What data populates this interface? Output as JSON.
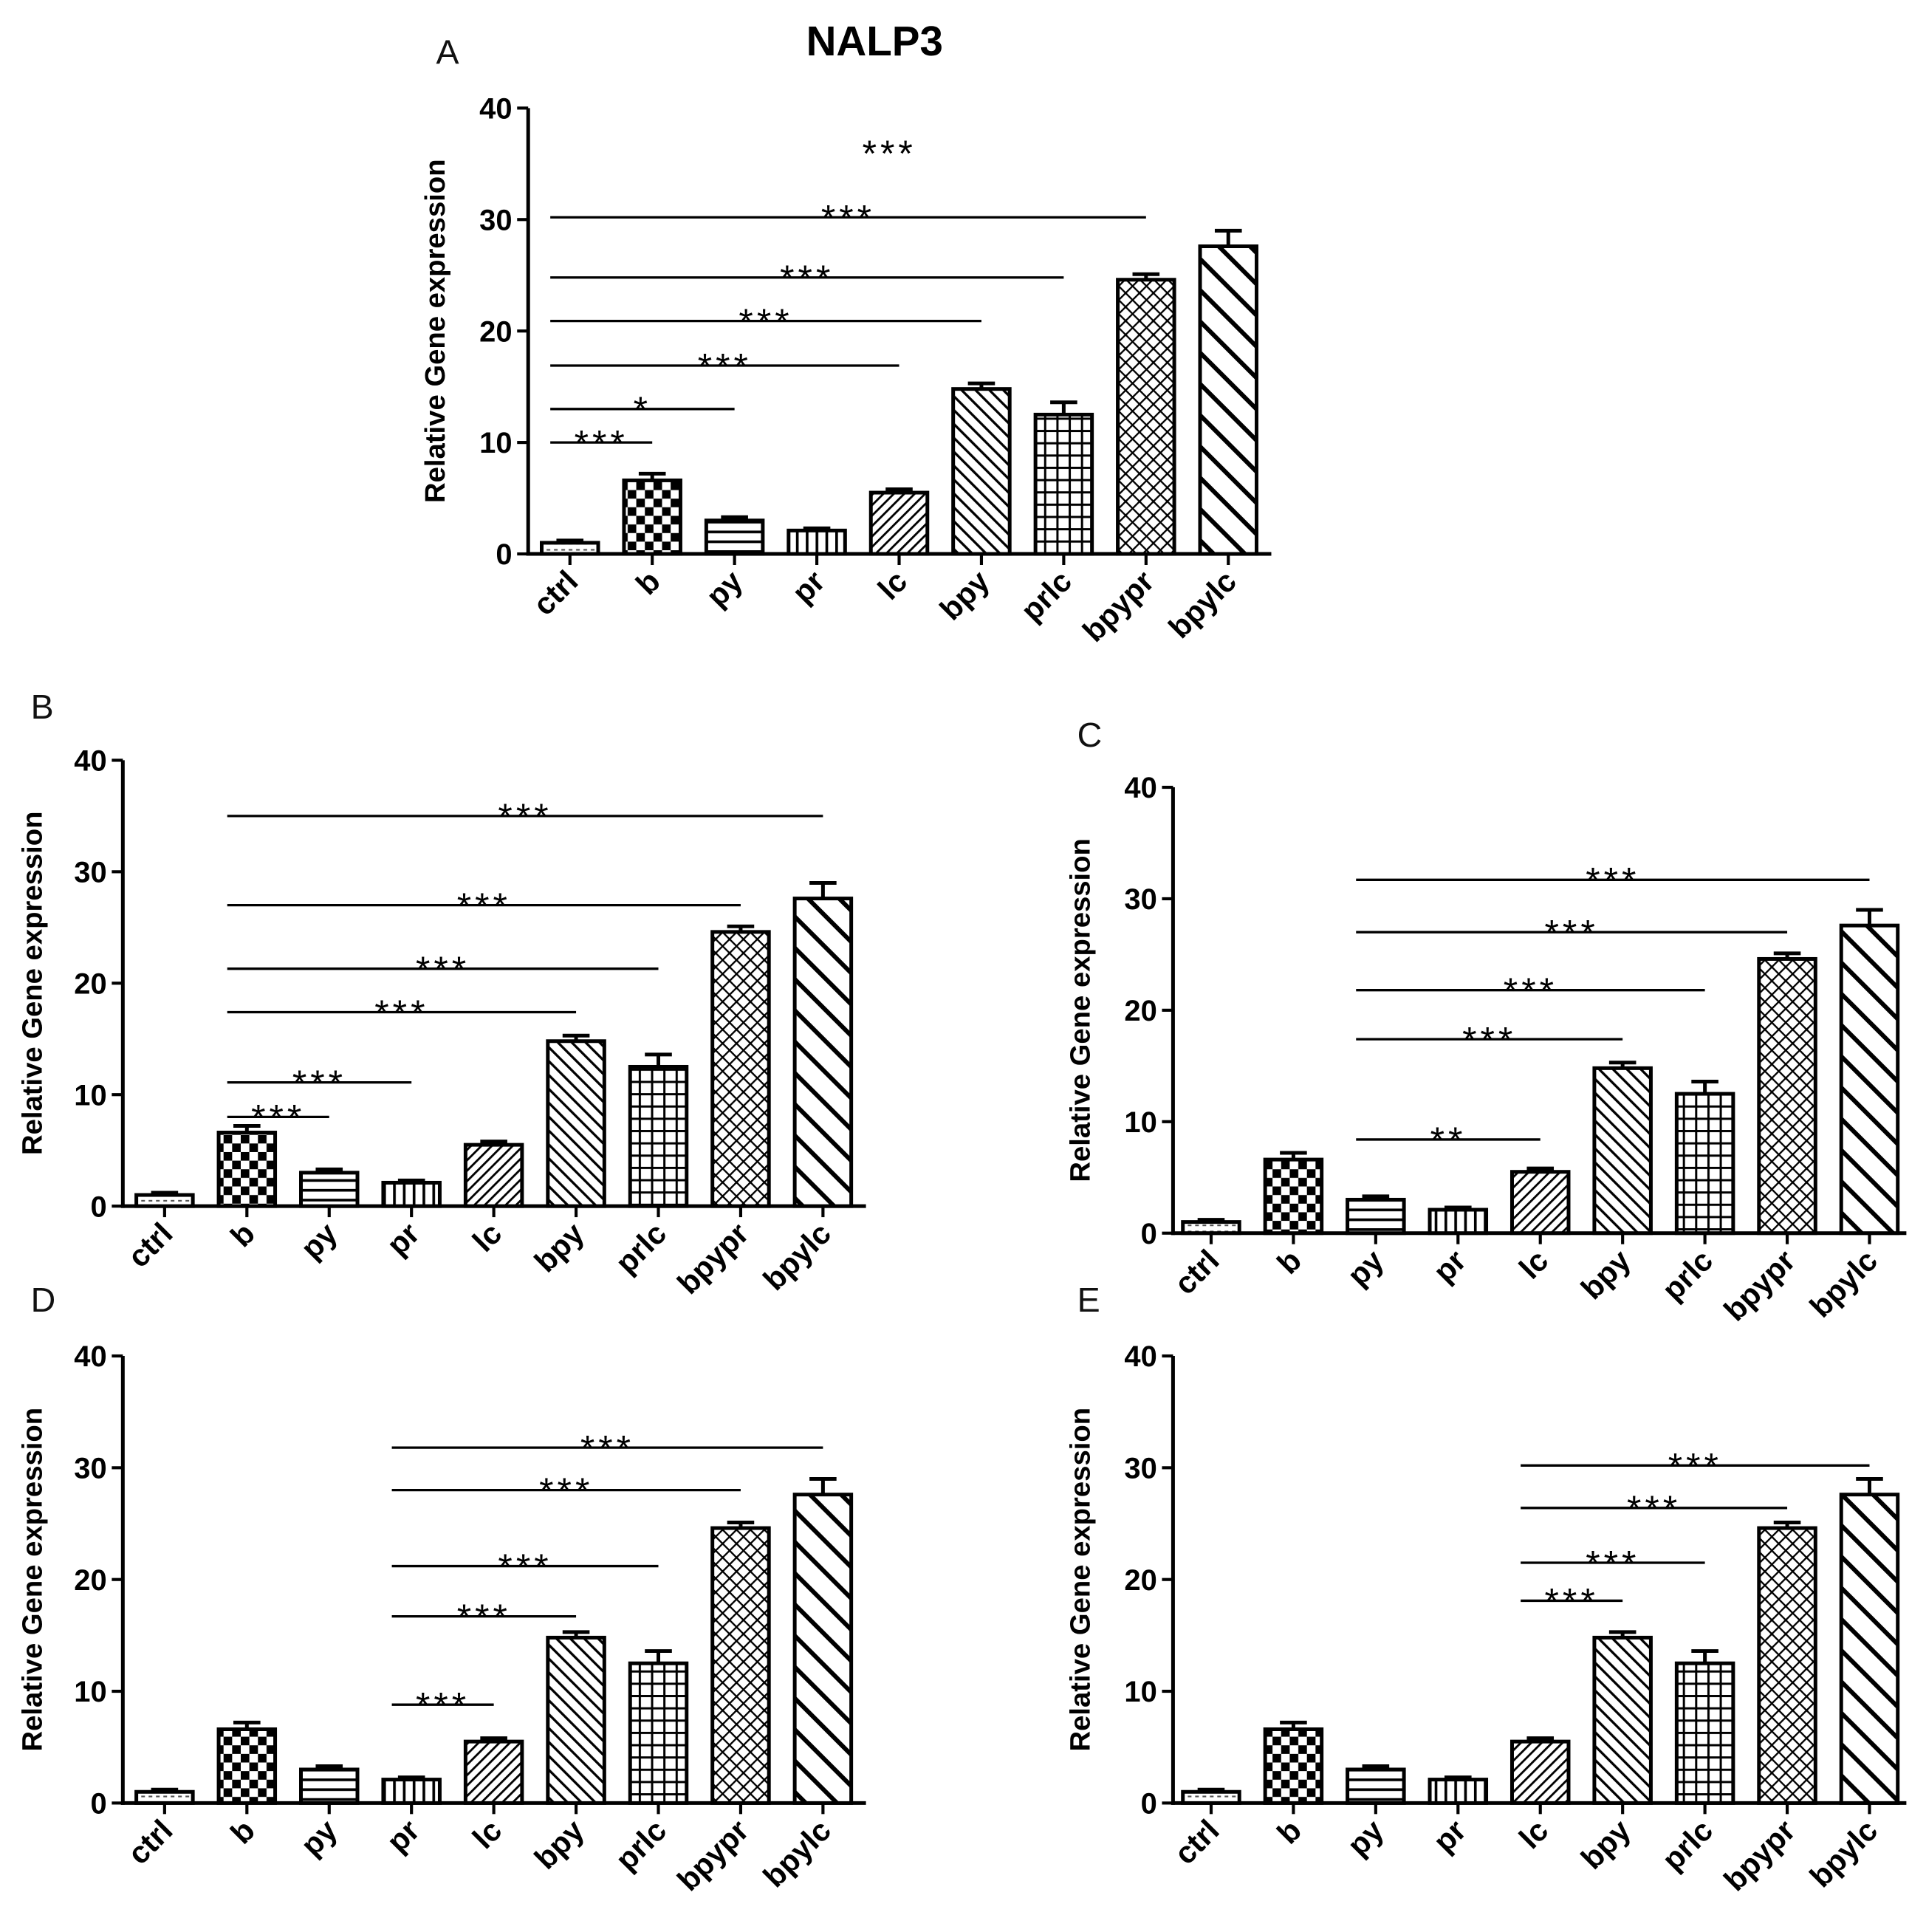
{
  "chart_data": [
    {
      "panel": "A",
      "title": "NALP3",
      "type": "bar",
      "categories": [
        "ctrl",
        "b",
        "py",
        "pr",
        "lc",
        "bpy",
        "prlc",
        "bpypr",
        "bpylc"
      ],
      "values": [
        1.0,
        6.6,
        3.0,
        2.1,
        5.5,
        14.8,
        12.5,
        24.6,
        27.6
      ],
      "errors": [
        0.2,
        0.6,
        0.3,
        0.2,
        0.3,
        0.5,
        1.1,
        0.5,
        1.4
      ],
      "xlabel": "",
      "ylabel": "Relative Gene expression",
      "ylim": [
        0,
        40
      ],
      "yticks": [
        0,
        10,
        20,
        30,
        40
      ],
      "grid": false,
      "annotations": [
        {
          "from": "ctrl",
          "to": "b",
          "y": 10.0,
          "label": "***",
          "line": true
        },
        {
          "from": "ctrl",
          "to": "py",
          "y": 13.0,
          "label": "*",
          "line": true
        },
        {
          "from": "ctrl",
          "to": "lc",
          "y": 16.9,
          "label": "***",
          "line": true
        },
        {
          "from": "ctrl",
          "to": "bpy",
          "y": 20.9,
          "label": "***",
          "line": true
        },
        {
          "from": "ctrl",
          "to": "prlc",
          "y": 24.8,
          "label": "***",
          "line": true
        },
        {
          "from": "ctrl",
          "to": "bpypr",
          "y": 30.2,
          "label": "***",
          "line": true
        },
        {
          "from": "ctrl",
          "to": "bpylc",
          "y": 36.0,
          "label": "***",
          "line": false
        }
      ]
    },
    {
      "panel": "B",
      "type": "bar",
      "categories": [
        "ctrl",
        "b",
        "py",
        "pr",
        "lc",
        "bpy",
        "prlc",
        "bpypr",
        "bpylc"
      ],
      "values": [
        1.0,
        6.6,
        3.0,
        2.1,
        5.5,
        14.8,
        12.5,
        24.6,
        27.6
      ],
      "errors": [
        0.2,
        0.6,
        0.3,
        0.2,
        0.3,
        0.5,
        1.1,
        0.5,
        1.4
      ],
      "xlabel": "",
      "ylabel": "Relative Gene expression",
      "ylim": [
        0,
        40
      ],
      "yticks": [
        0,
        10,
        20,
        30,
        40
      ],
      "grid": false,
      "annotations": [
        {
          "from": "b",
          "to": "py",
          "y": 8.0,
          "label": "***",
          "line": true
        },
        {
          "from": "b",
          "to": "pr",
          "y": 11.1,
          "label": "***",
          "line": true
        },
        {
          "from": "b",
          "to": "bpy",
          "y": 17.4,
          "label": "***",
          "line": true
        },
        {
          "from": "b",
          "to": "prlc",
          "y": 21.3,
          "label": "***",
          "line": true
        },
        {
          "from": "b",
          "to": "bpypr",
          "y": 27.0,
          "label": "***",
          "line": true
        },
        {
          "from": "b",
          "to": "bpylc",
          "y": 35.0,
          "label": "***",
          "line": true
        }
      ]
    },
    {
      "panel": "C",
      "type": "bar",
      "categories": [
        "ctrl",
        "b",
        "py",
        "pr",
        "lc",
        "bpy",
        "prlc",
        "bpypr",
        "bpylc"
      ],
      "values": [
        1.0,
        6.6,
        3.0,
        2.1,
        5.5,
        14.8,
        12.5,
        24.6,
        27.6
      ],
      "errors": [
        0.2,
        0.6,
        0.3,
        0.2,
        0.3,
        0.5,
        1.1,
        0.5,
        1.4
      ],
      "xlabel": "",
      "ylabel": "Relative Gene expression",
      "ylim": [
        0,
        40
      ],
      "yticks": [
        0,
        10,
        20,
        30,
        40
      ],
      "grid": false,
      "annotations": [
        {
          "from": "py",
          "to": "lc",
          "y": 8.4,
          "label": "**",
          "line": true
        },
        {
          "from": "py",
          "to": "bpy",
          "y": 17.4,
          "label": "***",
          "line": true
        },
        {
          "from": "py",
          "to": "prlc",
          "y": 21.8,
          "label": "***",
          "line": true
        },
        {
          "from": "py",
          "to": "bpypr",
          "y": 27.0,
          "label": "***",
          "line": true
        },
        {
          "from": "py",
          "to": "bpylc",
          "y": 31.7,
          "label": "***",
          "line": true
        }
      ]
    },
    {
      "panel": "D",
      "type": "bar",
      "categories": [
        "ctrl",
        "b",
        "py",
        "pr",
        "lc",
        "bpy",
        "prlc",
        "bpypr",
        "bpylc"
      ],
      "values": [
        1.0,
        6.6,
        3.0,
        2.1,
        5.5,
        14.8,
        12.5,
        24.6,
        27.6
      ],
      "errors": [
        0.2,
        0.6,
        0.3,
        0.2,
        0.3,
        0.5,
        1.1,
        0.5,
        1.4
      ],
      "xlabel": "",
      "ylabel": "Relative Gene expression",
      "ylim": [
        0,
        40
      ],
      "yticks": [
        0,
        10,
        20,
        30,
        40
      ],
      "grid": false,
      "annotations": [
        {
          "from": "pr",
          "to": "lc",
          "y": 8.8,
          "label": "***",
          "line": true
        },
        {
          "from": "pr",
          "to": "bpy",
          "y": 16.7,
          "label": "***",
          "line": true
        },
        {
          "from": "pr",
          "to": "prlc",
          "y": 21.2,
          "label": "***",
          "line": true
        },
        {
          "from": "pr",
          "to": "bpypr",
          "y": 28.0,
          "label": "***",
          "line": true
        },
        {
          "from": "pr",
          "to": "bpylc",
          "y": 31.8,
          "label": "***",
          "line": true
        }
      ]
    },
    {
      "panel": "E",
      "type": "bar",
      "categories": [
        "ctrl",
        "b",
        "py",
        "pr",
        "lc",
        "bpy",
        "prlc",
        "bpypr",
        "bpylc"
      ],
      "values": [
        1.0,
        6.6,
        3.0,
        2.1,
        5.5,
        14.8,
        12.5,
        24.6,
        27.6
      ],
      "errors": [
        0.2,
        0.6,
        0.3,
        0.2,
        0.3,
        0.5,
        1.1,
        0.5,
        1.4
      ],
      "xlabel": "",
      "ylabel": "Relative Gene expression",
      "ylim": [
        0,
        40
      ],
      "yticks": [
        0,
        10,
        20,
        30,
        40
      ],
      "grid": false,
      "annotations": [
        {
          "from": "lc",
          "to": "bpy",
          "y": 18.1,
          "label": "***",
          "line": true
        },
        {
          "from": "lc",
          "to": "prlc",
          "y": 21.5,
          "label": "***",
          "line": true
        },
        {
          "from": "lc",
          "to": "bpypr",
          "y": 26.4,
          "label": "***",
          "line": true
        },
        {
          "from": "lc",
          "to": "bpylc",
          "y": 30.2,
          "label": "***",
          "line": true
        }
      ]
    }
  ]
}
